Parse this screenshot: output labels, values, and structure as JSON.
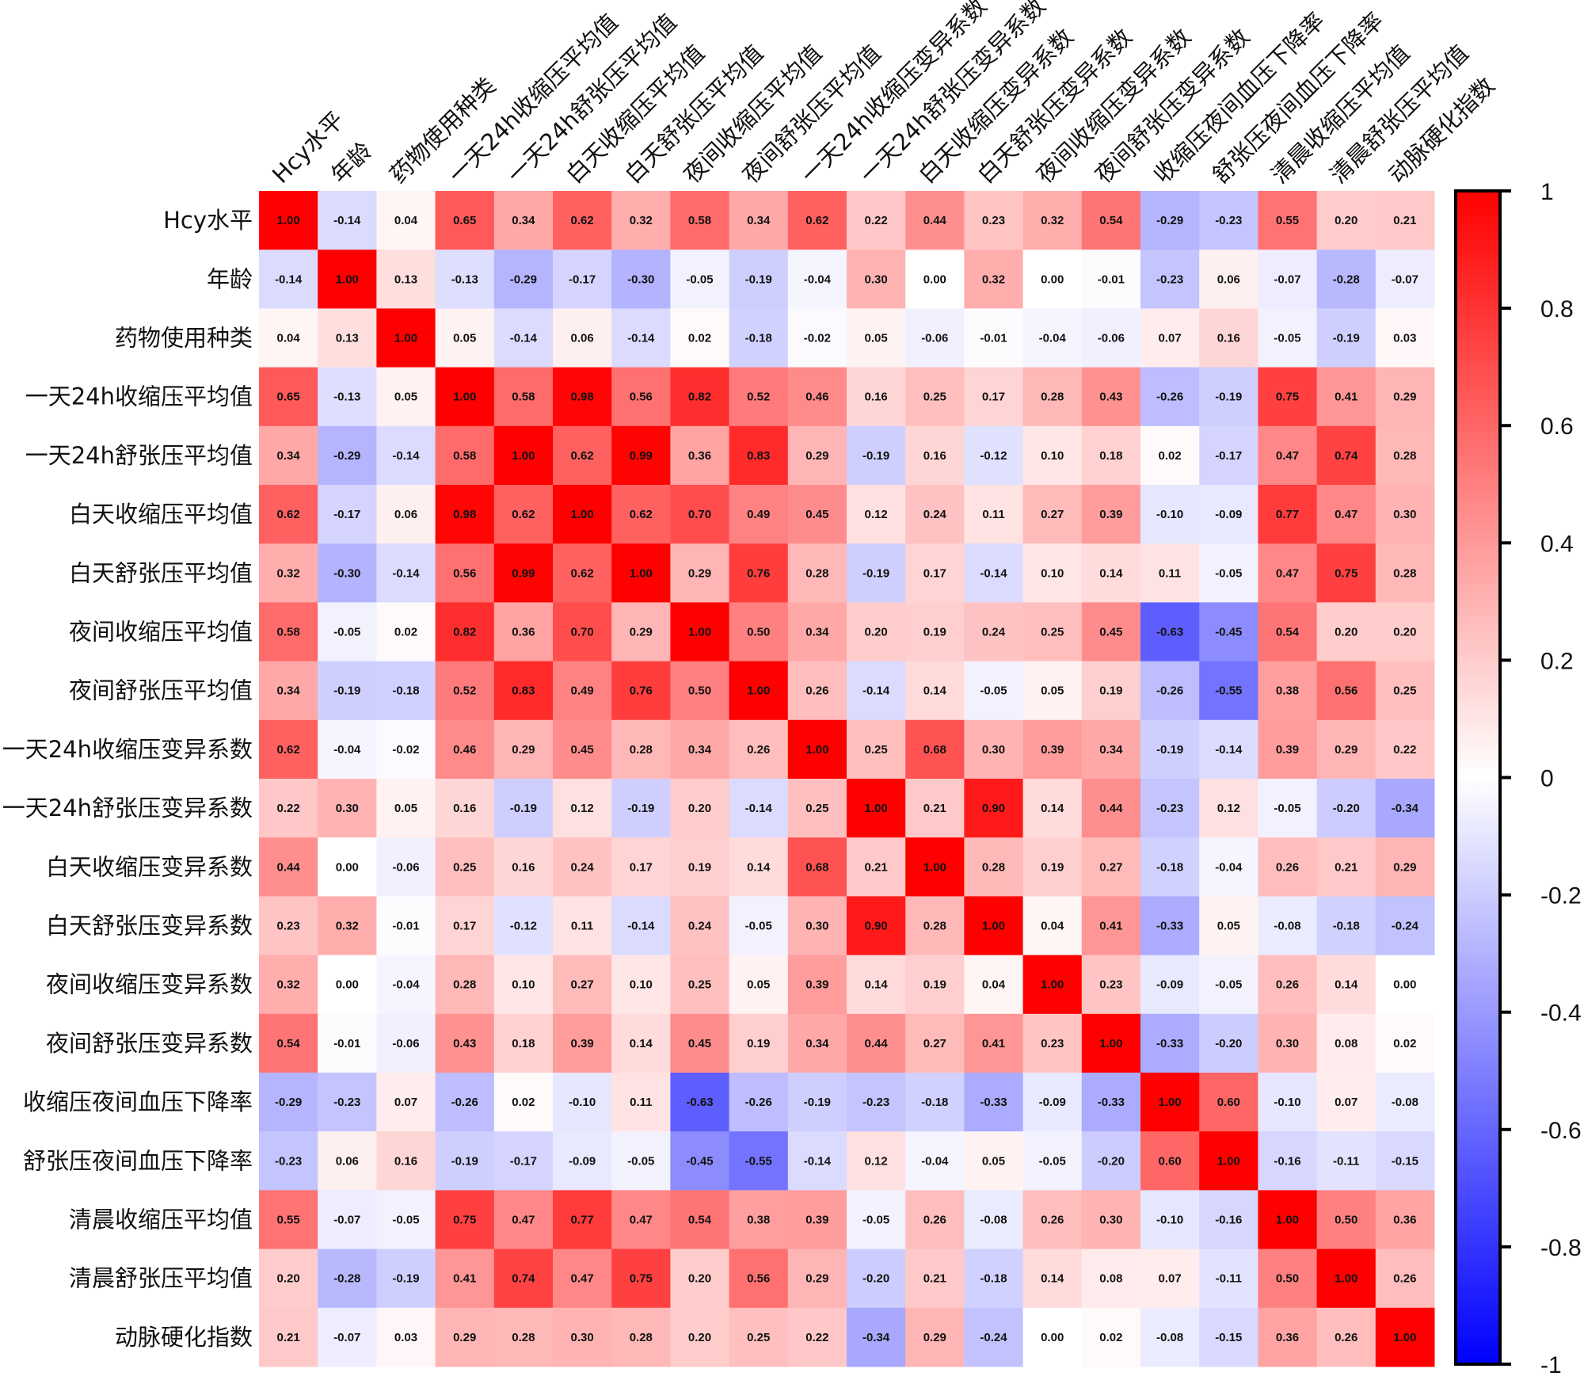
{
  "chart_data": {
    "type": "heatmap",
    "title": "",
    "labels": [
      "Hcy水平",
      "年龄",
      "药物使用种类",
      "一天24h收缩压平均值",
      "一天24h舒张压平均值",
      "白天收缩压平均值",
      "白天舒张压平均值",
      "夜间收缩压平均值",
      "夜间舒张压平均值",
      "一天24h收缩压变异系数",
      "一天24h舒张压变异系数",
      "白天收缩压变异系数",
      "白天舒张压变异系数",
      "夜间收缩压变异系数",
      "夜间舒张压变异系数",
      "收缩压夜间血压下降率",
      "舒张压夜间血压下降率",
      "清晨收缩压平均值",
      "清晨舒张压平均值",
      "动脉硬化指数"
    ],
    "values": [
      [
        1.0,
        -0.14,
        0.04,
        0.65,
        0.34,
        0.62,
        0.32,
        0.58,
        0.34,
        0.62,
        0.22,
        0.44,
        0.23,
        0.32,
        0.54,
        -0.29,
        -0.23,
        0.55,
        0.2,
        0.21
      ],
      [
        -0.14,
        1.0,
        0.13,
        -0.13,
        -0.29,
        -0.17,
        -0.3,
        -0.05,
        -0.19,
        -0.04,
        0.3,
        0.0,
        0.32,
        0.0,
        -0.01,
        -0.23,
        0.06,
        -0.07,
        -0.28,
        -0.07
      ],
      [
        0.04,
        0.13,
        1.0,
        0.05,
        -0.14,
        0.06,
        -0.14,
        0.02,
        -0.18,
        -0.02,
        0.05,
        -0.06,
        -0.01,
        -0.04,
        -0.06,
        0.07,
        0.16,
        -0.05,
        -0.19,
        0.03
      ],
      [
        0.65,
        -0.13,
        0.05,
        1.0,
        0.58,
        0.98,
        0.56,
        0.82,
        0.52,
        0.46,
        0.16,
        0.25,
        0.17,
        0.28,
        0.43,
        -0.26,
        -0.19,
        0.75,
        0.41,
        0.29
      ],
      [
        0.34,
        -0.29,
        -0.14,
        0.58,
        1.0,
        0.62,
        0.99,
        0.36,
        0.83,
        0.29,
        -0.19,
        0.16,
        -0.12,
        0.1,
        0.18,
        0.02,
        -0.17,
        0.47,
        0.74,
        0.28
      ],
      [
        0.62,
        -0.17,
        0.06,
        0.98,
        0.62,
        1.0,
        0.62,
        0.7,
        0.49,
        0.45,
        0.12,
        0.24,
        0.11,
        0.27,
        0.39,
        -0.1,
        -0.09,
        0.77,
        0.47,
        0.3
      ],
      [
        0.32,
        -0.3,
        -0.14,
        0.56,
        0.99,
        0.62,
        1.0,
        0.29,
        0.76,
        0.28,
        -0.19,
        0.17,
        -0.14,
        0.1,
        0.14,
        0.11,
        -0.05,
        0.47,
        0.75,
        0.28
      ],
      [
        0.58,
        -0.05,
        0.02,
        0.82,
        0.36,
        0.7,
        0.29,
        1.0,
        0.5,
        0.34,
        0.2,
        0.19,
        0.24,
        0.25,
        0.45,
        -0.63,
        -0.45,
        0.54,
        0.2,
        0.2
      ],
      [
        0.34,
        -0.19,
        -0.18,
        0.52,
        0.83,
        0.49,
        0.76,
        0.5,
        1.0,
        0.26,
        -0.14,
        0.14,
        -0.05,
        0.05,
        0.19,
        -0.26,
        -0.55,
        0.38,
        0.56,
        0.25
      ],
      [
        0.62,
        -0.04,
        -0.02,
        0.46,
        0.29,
        0.45,
        0.28,
        0.34,
        0.26,
        1.0,
        0.25,
        0.68,
        0.3,
        0.39,
        0.34,
        -0.19,
        -0.14,
        0.39,
        0.29,
        0.22
      ],
      [
        0.22,
        0.3,
        0.05,
        0.16,
        -0.19,
        0.12,
        -0.19,
        0.2,
        -0.14,
        0.25,
        1.0,
        0.21,
        0.9,
        0.14,
        0.44,
        -0.23,
        0.12,
        -0.05,
        -0.2,
        -0.34
      ],
      [
        0.44,
        0.0,
        -0.06,
        0.25,
        0.16,
        0.24,
        0.17,
        0.19,
        0.14,
        0.68,
        0.21,
        1.0,
        0.28,
        0.19,
        0.27,
        -0.18,
        -0.04,
        0.26,
        0.21,
        0.29
      ],
      [
        0.23,
        0.32,
        -0.01,
        0.17,
        -0.12,
        0.11,
        -0.14,
        0.24,
        -0.05,
        0.3,
        0.9,
        0.28,
        1.0,
        0.04,
        0.41,
        -0.33,
        0.05,
        -0.08,
        -0.18,
        -0.24
      ],
      [
        0.32,
        0.0,
        -0.04,
        0.28,
        0.1,
        0.27,
        0.1,
        0.25,
        0.05,
        0.39,
        0.14,
        0.19,
        0.04,
        1.0,
        0.23,
        -0.09,
        -0.05,
        0.26,
        0.14,
        0.0
      ],
      [
        0.54,
        -0.01,
        -0.06,
        0.43,
        0.18,
        0.39,
        0.14,
        0.45,
        0.19,
        0.34,
        0.44,
        0.27,
        0.41,
        0.23,
        1.0,
        -0.33,
        -0.2,
        0.3,
        0.08,
        0.02
      ],
      [
        -0.29,
        -0.23,
        0.07,
        -0.26,
        0.02,
        -0.1,
        0.11,
        -0.63,
        -0.26,
        -0.19,
        -0.23,
        -0.18,
        -0.33,
        -0.09,
        -0.33,
        1.0,
        0.6,
        -0.1,
        0.07,
        -0.08
      ],
      [
        -0.23,
        0.06,
        0.16,
        -0.19,
        -0.17,
        -0.09,
        -0.05,
        -0.45,
        -0.55,
        -0.14,
        0.12,
        -0.04,
        0.05,
        -0.05,
        -0.2,
        0.6,
        1.0,
        -0.16,
        -0.11,
        -0.15
      ],
      [
        0.55,
        -0.07,
        -0.05,
        0.75,
        0.47,
        0.77,
        0.47,
        0.54,
        0.38,
        0.39,
        -0.05,
        0.26,
        -0.08,
        0.26,
        0.3,
        -0.1,
        -0.16,
        1.0,
        0.5,
        0.36
      ],
      [
        0.2,
        -0.28,
        -0.19,
        0.41,
        0.74,
        0.47,
        0.75,
        0.2,
        0.56,
        0.29,
        -0.2,
        0.21,
        -0.18,
        0.14,
        0.08,
        0.07,
        -0.11,
        0.5,
        1.0,
        0.26
      ],
      [
        0.21,
        -0.07,
        0.03,
        0.29,
        0.28,
        0.3,
        0.28,
        0.2,
        0.25,
        0.22,
        -0.34,
        0.29,
        -0.24,
        0.0,
        0.02,
        -0.08,
        -0.15,
        0.36,
        0.26,
        1.0
      ]
    ],
    "colorbar": {
      "range": [
        -1,
        1
      ],
      "ticks": [
        "1",
        "0.8",
        "0.6",
        "0.4",
        "0.2",
        "0",
        "-0.2",
        "-0.4",
        "-0.6",
        "-0.8",
        "-1"
      ],
      "tick_values": [
        1,
        0.8,
        0.6,
        0.4,
        0.2,
        0,
        -0.2,
        -0.4,
        -0.6,
        -0.8,
        -1
      ],
      "colors": {
        "low": "#0000ff",
        "mid": "#ffffff",
        "high": "#ff0000"
      },
      "placement": "right"
    },
    "value_format": "2 decimals"
  }
}
